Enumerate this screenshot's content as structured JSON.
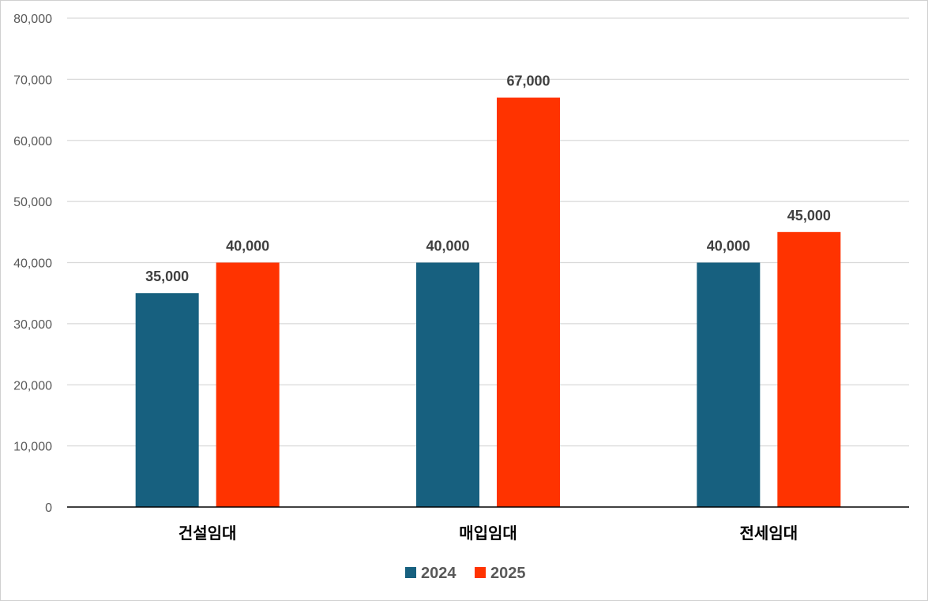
{
  "chart_data": {
    "type": "bar",
    "title": "",
    "xlabel": "",
    "ylabel": "",
    "categories": [
      "건설임대",
      "매입임대",
      "전세임대"
    ],
    "series": [
      {
        "name": "2024",
        "values": [
          35000,
          40000,
          40000
        ],
        "color": "#17607f"
      },
      {
        "name": "2025",
        "values": [
          40000,
          67000,
          45000
        ],
        "color": "#ff3300"
      }
    ],
    "data_labels": [
      [
        "35,000",
        "40,000",
        "40,000"
      ],
      [
        "40,000",
        "67,000",
        "45,000"
      ]
    ],
    "ylim": [
      0,
      80000
    ],
    "y_ticks": [
      0,
      10000,
      20000,
      30000,
      40000,
      50000,
      60000,
      70000,
      80000
    ],
    "y_tick_labels": [
      "0",
      "10,000",
      "20,000",
      "30,000",
      "40,000",
      "50,000",
      "60,000",
      "70,000",
      "80,000"
    ],
    "grid": true,
    "legend_position": "bottom"
  },
  "colors": {
    "gridline": "#d9d9d9",
    "axis_line": "#000000"
  }
}
